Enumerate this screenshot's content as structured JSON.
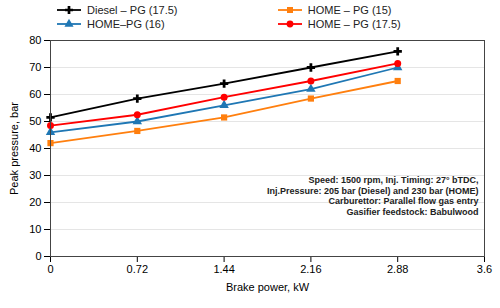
{
  "chart_data": {
    "type": "line",
    "x": [
      0,
      0.72,
      1.44,
      2.16,
      2.88
    ],
    "series": [
      {
        "name": "Diesel – PG (17.5)",
        "color": "#000000",
        "marker": "plus",
        "values": [
          51.5,
          58.5,
          64.0,
          70.0,
          76.0
        ]
      },
      {
        "name": "HOME–PG (16)",
        "color": "#1F77B4",
        "marker": "triangle",
        "values": [
          46.0,
          50.0,
          56.0,
          62.0,
          70.0
        ]
      },
      {
        "name": "HOME – PG (15)",
        "color": "#FF7F0E",
        "marker": "square",
        "values": [
          42.0,
          46.5,
          51.5,
          58.5,
          65.0
        ]
      },
      {
        "name": "HOME – PG (17.5)",
        "color": "#FF0000",
        "marker": "circle",
        "values": [
          48.5,
          52.5,
          59.0,
          65.0,
          71.5
        ]
      }
    ],
    "xlabel": "Brake power, kW",
    "ylabel": "Peak pressure, bar",
    "xlim": [
      0,
      3.6
    ],
    "ylim": [
      0,
      80
    ],
    "xticks": [
      0,
      0.72,
      1.44,
      2.16,
      2.88,
      3.6
    ],
    "yticks": [
      0,
      10,
      20,
      30,
      40,
      50,
      60,
      70,
      80
    ],
    "annotation": "Speed: 1500 rpm, Inj. Timing: 27° bTDC,\nInj.Pressure: 205 bar (Diesel) and 230 bar (HOME)\nCarburettor: Parallel flow gas entry\nGasifier feedstock: Babulwood",
    "grid": "y",
    "legend": "top"
  }
}
